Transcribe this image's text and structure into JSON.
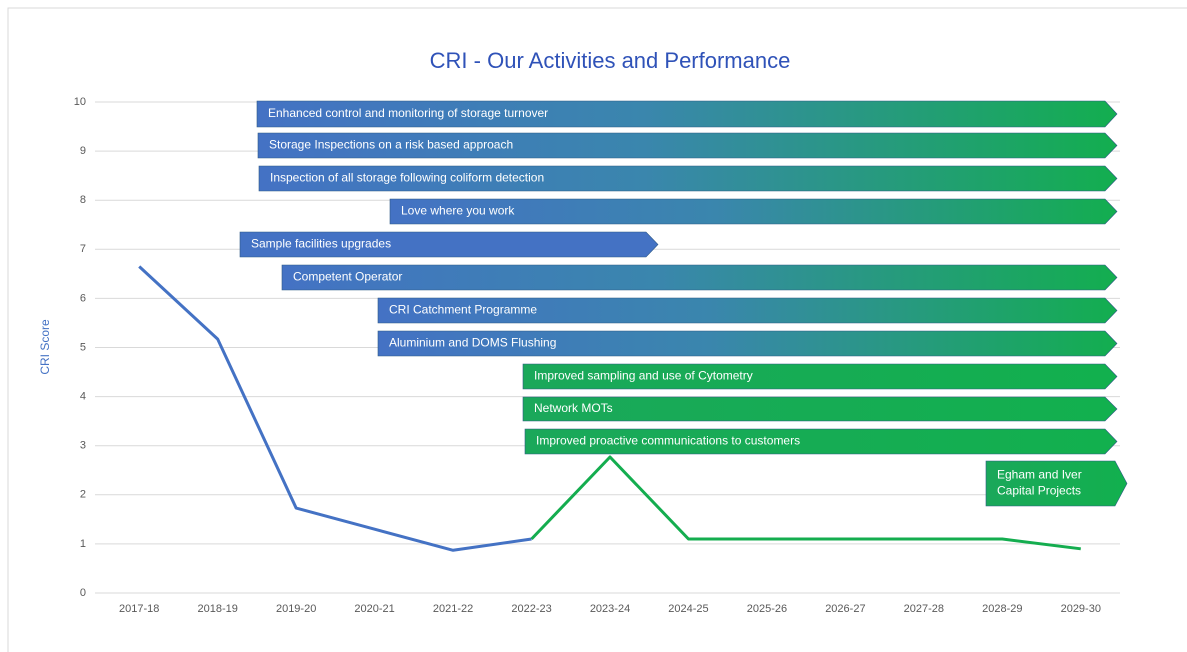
{
  "chart_data": {
    "type": "line",
    "title": "CRI - Our Activities and Performance",
    "y_label": "CRI Score",
    "categories": [
      "2017-18",
      "2018-19",
      "2019-20",
      "2020-21",
      "2021-22",
      "2022-23",
      "2023-24",
      "2024-25",
      "2025-26",
      "2026-27",
      "2027-28",
      "2028-29",
      "2029-30"
    ],
    "series": [
      {
        "color": "#4472c4",
        "values": [
          6.65,
          5.17,
          1.73,
          1.3,
          0.87,
          1.1,
          null,
          null,
          null,
          null,
          null,
          null,
          null
        ]
      },
      {
        "color": "#14ad4f",
        "values": [
          null,
          null,
          null,
          null,
          null,
          1.1,
          2.77,
          1.1,
          1.1,
          1.1,
          1.1,
          1.1,
          0.9
        ]
      }
    ],
    "ylim": [
      0,
      10
    ],
    "yticks": [
      0,
      1,
      2,
      3,
      4,
      5,
      6,
      7,
      8,
      9,
      10
    ],
    "grid": true,
    "annotations": [
      {
        "lines": [
          "Enhanced control and monitoring of storage turnover"
        ]
      },
      {
        "lines": [
          "Storage Inspections on a risk based approach"
        ]
      },
      {
        "lines": [
          "Inspection of all storage following coliform detection"
        ]
      },
      {
        "lines": [
          "Love where you work"
        ]
      },
      {
        "lines": [
          "Sample facilities upgrades"
        ]
      },
      {
        "lines": [
          "Competent Operator"
        ]
      },
      {
        "lines": [
          "CRI Catchment Programme"
        ]
      },
      {
        "lines": [
          "Aluminium and DOMS Flushing"
        ]
      },
      {
        "lines": [
          "Improved sampling and use of Cytometry"
        ]
      },
      {
        "lines": [
          "Network MOTs"
        ]
      },
      {
        "lines": [
          "Improved proactive communications to customers"
        ]
      },
      {
        "lines": [
          "Egham and Iver",
          "Capital Projects"
        ]
      }
    ]
  }
}
